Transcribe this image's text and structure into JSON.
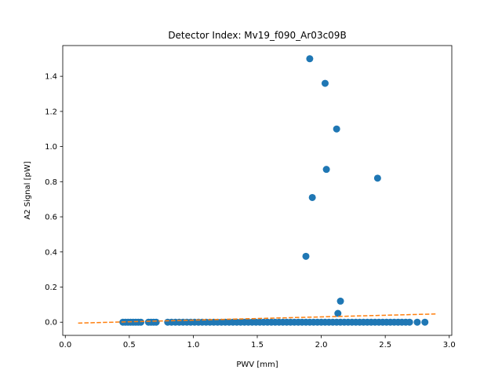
{
  "chart_data": {
    "type": "scatter",
    "title": "Detector Index: Mv19_f090_Ar03c09B",
    "xlabel": "PWV [mm]",
    "ylabel": "A2 Signal [pW]",
    "xlim": [
      -0.02,
      3.02
    ],
    "ylim": [
      -0.075,
      1.575
    ],
    "xticks": [
      0.0,
      0.5,
      1.0,
      1.5,
      2.0,
      2.5,
      3.0
    ],
    "xtick_labels": [
      "0.0",
      "0.5",
      "1.0",
      "1.5",
      "2.0",
      "2.5",
      "3.0"
    ],
    "yticks": [
      0.0,
      0.2,
      0.4,
      0.6,
      0.8,
      1.0,
      1.2,
      1.4
    ],
    "ytick_labels": [
      "0.0",
      "0.2",
      "0.4",
      "0.6",
      "0.8",
      "1.0",
      "1.2",
      "1.4"
    ],
    "series": [
      {
        "name": "data",
        "color": "#1f77b4",
        "marker": "circle",
        "points": [
          [
            0.45,
            0.0
          ],
          [
            0.47,
            0.0
          ],
          [
            0.49,
            0.0
          ],
          [
            0.51,
            0.0
          ],
          [
            0.53,
            0.0
          ],
          [
            0.55,
            0.0
          ],
          [
            0.57,
            0.0
          ],
          [
            0.59,
            0.0
          ],
          [
            0.65,
            0.0
          ],
          [
            0.67,
            0.0
          ],
          [
            0.69,
            0.0
          ],
          [
            0.71,
            0.0
          ],
          [
            0.8,
            0.0
          ],
          [
            0.83,
            0.0
          ],
          [
            0.86,
            0.0
          ],
          [
            0.89,
            0.0
          ],
          [
            0.92,
            0.0
          ],
          [
            0.95,
            0.0
          ],
          [
            0.98,
            0.0
          ],
          [
            1.01,
            0.0
          ],
          [
            1.04,
            0.0
          ],
          [
            1.07,
            0.0
          ],
          [
            1.1,
            0.0
          ],
          [
            1.13,
            0.0
          ],
          [
            1.16,
            0.0
          ],
          [
            1.19,
            0.0
          ],
          [
            1.22,
            0.0
          ],
          [
            1.25,
            0.0
          ],
          [
            1.28,
            0.0
          ],
          [
            1.31,
            0.0
          ],
          [
            1.34,
            0.0
          ],
          [
            1.37,
            0.0
          ],
          [
            1.4,
            0.0
          ],
          [
            1.43,
            0.0
          ],
          [
            1.46,
            0.0
          ],
          [
            1.49,
            0.0
          ],
          [
            1.52,
            0.0
          ],
          [
            1.55,
            0.0
          ],
          [
            1.58,
            0.0
          ],
          [
            1.61,
            0.0
          ],
          [
            1.64,
            0.0
          ],
          [
            1.67,
            0.0
          ],
          [
            1.7,
            0.0
          ],
          [
            1.73,
            0.0
          ],
          [
            1.76,
            0.0
          ],
          [
            1.79,
            0.0
          ],
          [
            1.82,
            0.0
          ],
          [
            1.85,
            0.0
          ],
          [
            1.88,
            0.0
          ],
          [
            1.91,
            0.0
          ],
          [
            1.94,
            0.0
          ],
          [
            1.97,
            0.0
          ],
          [
            2.0,
            0.0
          ],
          [
            2.03,
            0.0
          ],
          [
            2.06,
            0.0
          ],
          [
            2.09,
            0.0
          ],
          [
            2.12,
            0.0
          ],
          [
            2.15,
            0.0
          ],
          [
            2.18,
            0.0
          ],
          [
            2.21,
            0.0
          ],
          [
            2.24,
            0.0
          ],
          [
            2.27,
            0.0
          ],
          [
            2.3,
            0.0
          ],
          [
            2.33,
            0.0
          ],
          [
            2.36,
            0.0
          ],
          [
            2.39,
            0.0
          ],
          [
            2.42,
            0.0
          ],
          [
            2.45,
            0.0
          ],
          [
            2.48,
            0.0
          ],
          [
            2.51,
            0.0
          ],
          [
            2.54,
            0.0
          ],
          [
            2.57,
            0.0
          ],
          [
            2.6,
            0.0
          ],
          [
            2.63,
            0.0
          ],
          [
            2.66,
            0.0
          ],
          [
            2.69,
            0.0
          ],
          [
            2.75,
            0.0
          ],
          [
            2.81,
            0.0
          ],
          [
            1.91,
            1.5
          ],
          [
            2.03,
            1.36
          ],
          [
            2.12,
            1.1
          ],
          [
            2.04,
            0.87
          ],
          [
            2.44,
            0.82
          ],
          [
            1.93,
            0.71
          ],
          [
            1.88,
            0.375
          ],
          [
            2.15,
            0.12
          ],
          [
            2.13,
            0.05
          ]
        ]
      },
      {
        "name": "fit",
        "color": "#ff7f0e",
        "style": "dashed",
        "points": [
          [
            0.1,
            -0.005
          ],
          [
            2.9,
            0.047
          ]
        ]
      }
    ]
  }
}
